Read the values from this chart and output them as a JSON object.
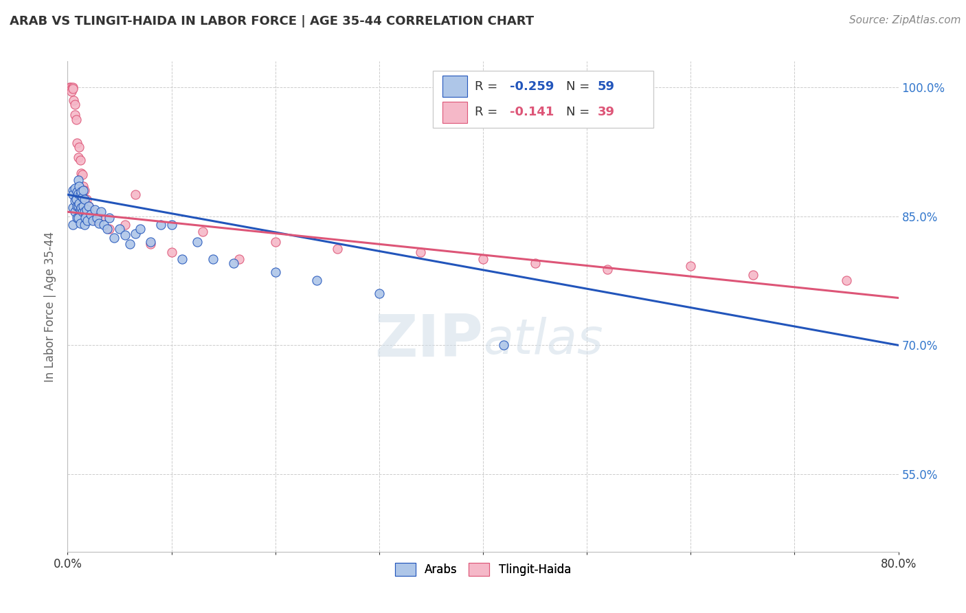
{
  "title": "ARAB VS TLINGIT-HAIDA IN LABOR FORCE | AGE 35-44 CORRELATION CHART",
  "source": "Source: ZipAtlas.com",
  "ylabel": "In Labor Force | Age 35-44",
  "xlim": [
    0.0,
    0.8
  ],
  "ylim": [
    0.46,
    1.03
  ],
  "yticks": [
    0.55,
    0.7,
    0.85,
    1.0
  ],
  "yticklabels": [
    "55.0%",
    "70.0%",
    "85.0%",
    "100.0%"
  ],
  "legend_r_arab": "-0.259",
  "legend_n_arab": "59",
  "legend_r_tlingit": "-0.141",
  "legend_n_tlingit": "39",
  "arab_color": "#aec6e8",
  "tlingit_color": "#f5b8c8",
  "arab_line_color": "#2255bb",
  "tlingit_line_color": "#dd5577",
  "watermark_zip": "ZIP",
  "watermark_atlas": "atlas",
  "arab_x": [
    0.005,
    0.005,
    0.005,
    0.005,
    0.007,
    0.007,
    0.007,
    0.008,
    0.009,
    0.009,
    0.009,
    0.01,
    0.01,
    0.01,
    0.01,
    0.011,
    0.011,
    0.012,
    0.012,
    0.012,
    0.013,
    0.013,
    0.014,
    0.014,
    0.015,
    0.015,
    0.016,
    0.016,
    0.016,
    0.017,
    0.018,
    0.019,
    0.02,
    0.022,
    0.024,
    0.026,
    0.028,
    0.03,
    0.032,
    0.035,
    0.038,
    0.04,
    0.045,
    0.05,
    0.055,
    0.06,
    0.065,
    0.07,
    0.08,
    0.09,
    0.1,
    0.11,
    0.125,
    0.14,
    0.16,
    0.2,
    0.24,
    0.3,
    0.42
  ],
  "arab_y": [
    0.88,
    0.875,
    0.86,
    0.84,
    0.882,
    0.868,
    0.855,
    0.87,
    0.878,
    0.862,
    0.848,
    0.892,
    0.876,
    0.862,
    0.848,
    0.885,
    0.865,
    0.875,
    0.858,
    0.842,
    0.878,
    0.86,
    0.872,
    0.855,
    0.88,
    0.862,
    0.87,
    0.855,
    0.84,
    0.848,
    0.858,
    0.845,
    0.862,
    0.852,
    0.845,
    0.858,
    0.848,
    0.842,
    0.855,
    0.84,
    0.835,
    0.848,
    0.825,
    0.835,
    0.828,
    0.818,
    0.83,
    0.835,
    0.82,
    0.84,
    0.84,
    0.8,
    0.82,
    0.8,
    0.795,
    0.785,
    0.775,
    0.76,
    0.7
  ],
  "tlingit_x": [
    0.002,
    0.003,
    0.004,
    0.004,
    0.005,
    0.005,
    0.006,
    0.007,
    0.007,
    0.008,
    0.009,
    0.01,
    0.011,
    0.012,
    0.013,
    0.014,
    0.015,
    0.016,
    0.018,
    0.02,
    0.025,
    0.028,
    0.032,
    0.04,
    0.055,
    0.065,
    0.08,
    0.1,
    0.13,
    0.165,
    0.2,
    0.26,
    0.34,
    0.4,
    0.45,
    0.52,
    0.6,
    0.66,
    0.75
  ],
  "tlingit_y": [
    1.0,
    1.0,
    0.998,
    0.995,
    1.0,
    0.998,
    0.985,
    0.98,
    0.968,
    0.962,
    0.935,
    0.918,
    0.93,
    0.915,
    0.9,
    0.898,
    0.885,
    0.88,
    0.87,
    0.862,
    0.855,
    0.845,
    0.848,
    0.835,
    0.84,
    0.875,
    0.818,
    0.808,
    0.832,
    0.8,
    0.82,
    0.812,
    0.808,
    0.8,
    0.795,
    0.788,
    0.792,
    0.782,
    0.775
  ],
  "arab_line_x0": 0.0,
  "arab_line_y0": 0.875,
  "arab_line_x1": 0.8,
  "arab_line_y1": 0.7,
  "tlingit_line_x0": 0.0,
  "tlingit_line_y0": 0.855,
  "tlingit_line_x1": 0.8,
  "tlingit_line_y1": 0.755,
  "background_color": "#ffffff",
  "grid_color": "#cccccc",
  "title_color": "#333333",
  "axis_label_color": "#666666",
  "right_axis_color": "#3377cc",
  "marker_size": 90,
  "title_fontsize": 13,
  "source_fontsize": 11,
  "axis_fontsize": 12,
  "tick_fontsize": 12
}
